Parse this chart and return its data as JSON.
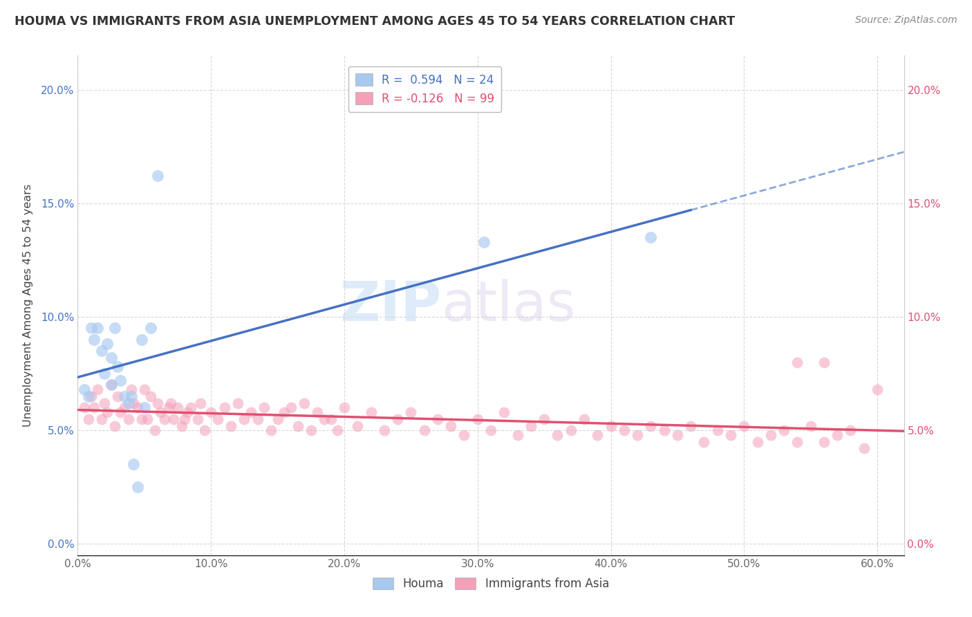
{
  "title": "HOUMA VS IMMIGRANTS FROM ASIA UNEMPLOYMENT AMONG AGES 45 TO 54 YEARS CORRELATION CHART",
  "source": "Source: ZipAtlas.com",
  "ylabel": "Unemployment Among Ages 45 to 54 years",
  "xlim": [
    0.0,
    0.62
  ],
  "ylim": [
    -0.005,
    0.215
  ],
  "xticks": [
    0.0,
    0.1,
    0.2,
    0.3,
    0.4,
    0.5,
    0.6
  ],
  "xticklabels": [
    "0.0%",
    "10.0%",
    "20.0%",
    "30.0%",
    "40.0%",
    "50.0%",
    "60.0%"
  ],
  "yticks": [
    0.0,
    0.05,
    0.1,
    0.15,
    0.2
  ],
  "yticklabels": [
    "0.0%",
    "5.0%",
    "10.0%",
    "15.0%",
    "20.0%"
  ],
  "houma_R": 0.594,
  "houma_N": 24,
  "immigrants_R": -0.126,
  "immigrants_N": 99,
  "houma_color": "#a8c8f0",
  "houma_line_color": "#4472c4",
  "immigrants_color": "#f4a0b8",
  "immigrants_line_color": "#e05070",
  "legend_label_houma": "Houma",
  "legend_label_immigrants": "Immigrants from Asia",
  "houma_x": [
    0.005,
    0.008,
    0.01,
    0.012,
    0.015,
    0.018,
    0.02,
    0.022,
    0.025,
    0.025,
    0.028,
    0.03,
    0.032,
    0.035,
    0.038,
    0.04,
    0.042,
    0.045,
    0.048,
    0.05,
    0.055,
    0.06,
    0.305,
    0.43
  ],
  "houma_y": [
    0.068,
    0.065,
    0.095,
    0.09,
    0.095,
    0.085,
    0.075,
    0.088,
    0.07,
    0.082,
    0.095,
    0.078,
    0.072,
    0.065,
    0.062,
    0.065,
    0.035,
    0.025,
    0.09,
    0.06,
    0.095,
    0.162,
    0.133,
    0.135
  ],
  "immigrants_x": [
    0.005,
    0.008,
    0.01,
    0.012,
    0.015,
    0.018,
    0.02,
    0.022,
    0.025,
    0.028,
    0.03,
    0.032,
    0.035,
    0.038,
    0.04,
    0.042,
    0.045,
    0.048,
    0.05,
    0.052,
    0.055,
    0.058,
    0.06,
    0.062,
    0.065,
    0.068,
    0.07,
    0.072,
    0.075,
    0.078,
    0.08,
    0.082,
    0.085,
    0.09,
    0.092,
    0.095,
    0.1,
    0.105,
    0.11,
    0.115,
    0.12,
    0.125,
    0.13,
    0.135,
    0.14,
    0.145,
    0.15,
    0.155,
    0.16,
    0.165,
    0.17,
    0.175,
    0.18,
    0.185,
    0.19,
    0.195,
    0.2,
    0.21,
    0.22,
    0.23,
    0.24,
    0.25,
    0.26,
    0.27,
    0.28,
    0.29,
    0.3,
    0.31,
    0.32,
    0.33,
    0.34,
    0.35,
    0.36,
    0.37,
    0.38,
    0.39,
    0.4,
    0.41,
    0.42,
    0.43,
    0.44,
    0.45,
    0.46,
    0.47,
    0.48,
    0.49,
    0.5,
    0.51,
    0.52,
    0.53,
    0.54,
    0.55,
    0.56,
    0.57,
    0.58,
    0.59,
    0.6,
    0.54,
    0.56
  ],
  "immigrants_y": [
    0.06,
    0.055,
    0.065,
    0.06,
    0.068,
    0.055,
    0.062,
    0.058,
    0.07,
    0.052,
    0.065,
    0.058,
    0.06,
    0.055,
    0.068,
    0.062,
    0.06,
    0.055,
    0.068,
    0.055,
    0.065,
    0.05,
    0.062,
    0.058,
    0.055,
    0.06,
    0.062,
    0.055,
    0.06,
    0.052,
    0.055,
    0.058,
    0.06,
    0.055,
    0.062,
    0.05,
    0.058,
    0.055,
    0.06,
    0.052,
    0.062,
    0.055,
    0.058,
    0.055,
    0.06,
    0.05,
    0.055,
    0.058,
    0.06,
    0.052,
    0.062,
    0.05,
    0.058,
    0.055,
    0.055,
    0.05,
    0.06,
    0.052,
    0.058,
    0.05,
    0.055,
    0.058,
    0.05,
    0.055,
    0.052,
    0.048,
    0.055,
    0.05,
    0.058,
    0.048,
    0.052,
    0.055,
    0.048,
    0.05,
    0.055,
    0.048,
    0.052,
    0.05,
    0.048,
    0.052,
    0.05,
    0.048,
    0.052,
    0.045,
    0.05,
    0.048,
    0.052,
    0.045,
    0.048,
    0.05,
    0.045,
    0.052,
    0.045,
    0.048,
    0.05,
    0.042,
    0.068,
    0.08,
    0.08
  ],
  "watermark_zip": "ZIP",
  "watermark_atlas": "atlas",
  "background_color": "#ffffff",
  "grid_color": "#d8d8d8"
}
